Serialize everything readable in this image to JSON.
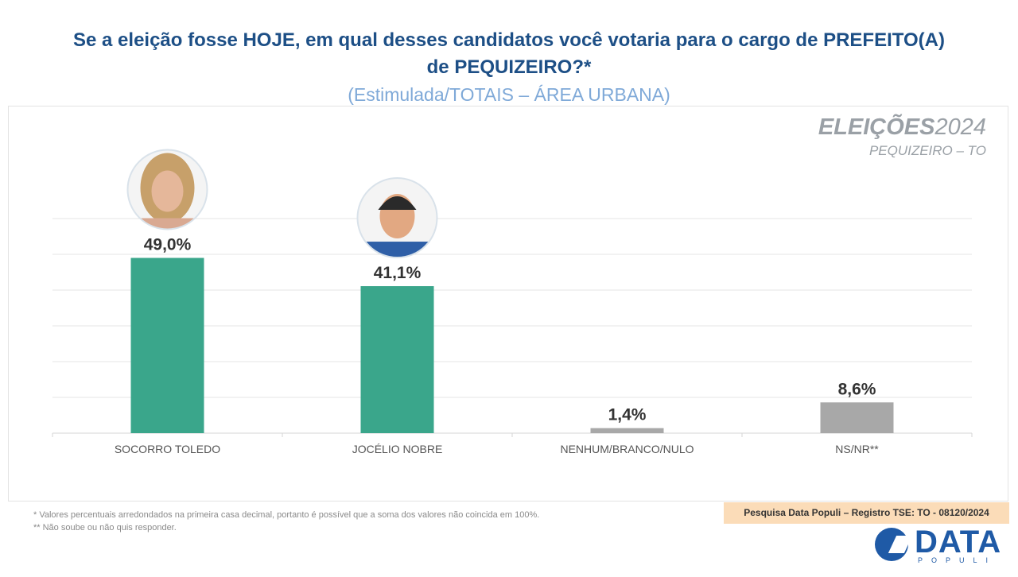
{
  "header": {
    "title_line1": "Se a eleição fosse HOJE, em qual desses candidatos você votaria para o cargo de PREFEITO(A)",
    "title_line2": "de PEQUIZEIRO?*",
    "subtitle": "(Estimulada/TOTAIS – ÁREA URBANA)"
  },
  "brand": {
    "bold": "ELEIÇÕES",
    "year": "2024",
    "place": "PEQUIZEIRO – TO"
  },
  "chart_data": {
    "type": "bar",
    "categories": [
      "SOCORRO TOLEDO",
      "JOCÉLIO NOBRE",
      "NENHUM/BRANCO/NULO",
      "NS/NR**"
    ],
    "values": [
      49.0,
      41.1,
      1.4,
      8.6
    ],
    "value_labels": [
      "49,0%",
      "41,1%",
      "1,4%",
      "8,6%"
    ],
    "colors": [
      "#3aa68b",
      "#3aa68b",
      "#a8a8a8",
      "#a8a8a8"
    ],
    "photos": [
      "candidate-photo",
      "candidate-photo",
      null,
      null
    ],
    "ylim": [
      0,
      60
    ],
    "grid": true,
    "legend": "none"
  },
  "footnotes": [
    "*  Valores percentuais arredondados na primeira casa decimal, portanto é possível que a soma dos valores não coincida em 100%.",
    "** Não soube ou não quis responder."
  ],
  "registro": "Pesquisa Data Populi – Registro TSE: TO - 08120/2024",
  "logo": {
    "word": "DATA",
    "sub": "POPULI"
  }
}
